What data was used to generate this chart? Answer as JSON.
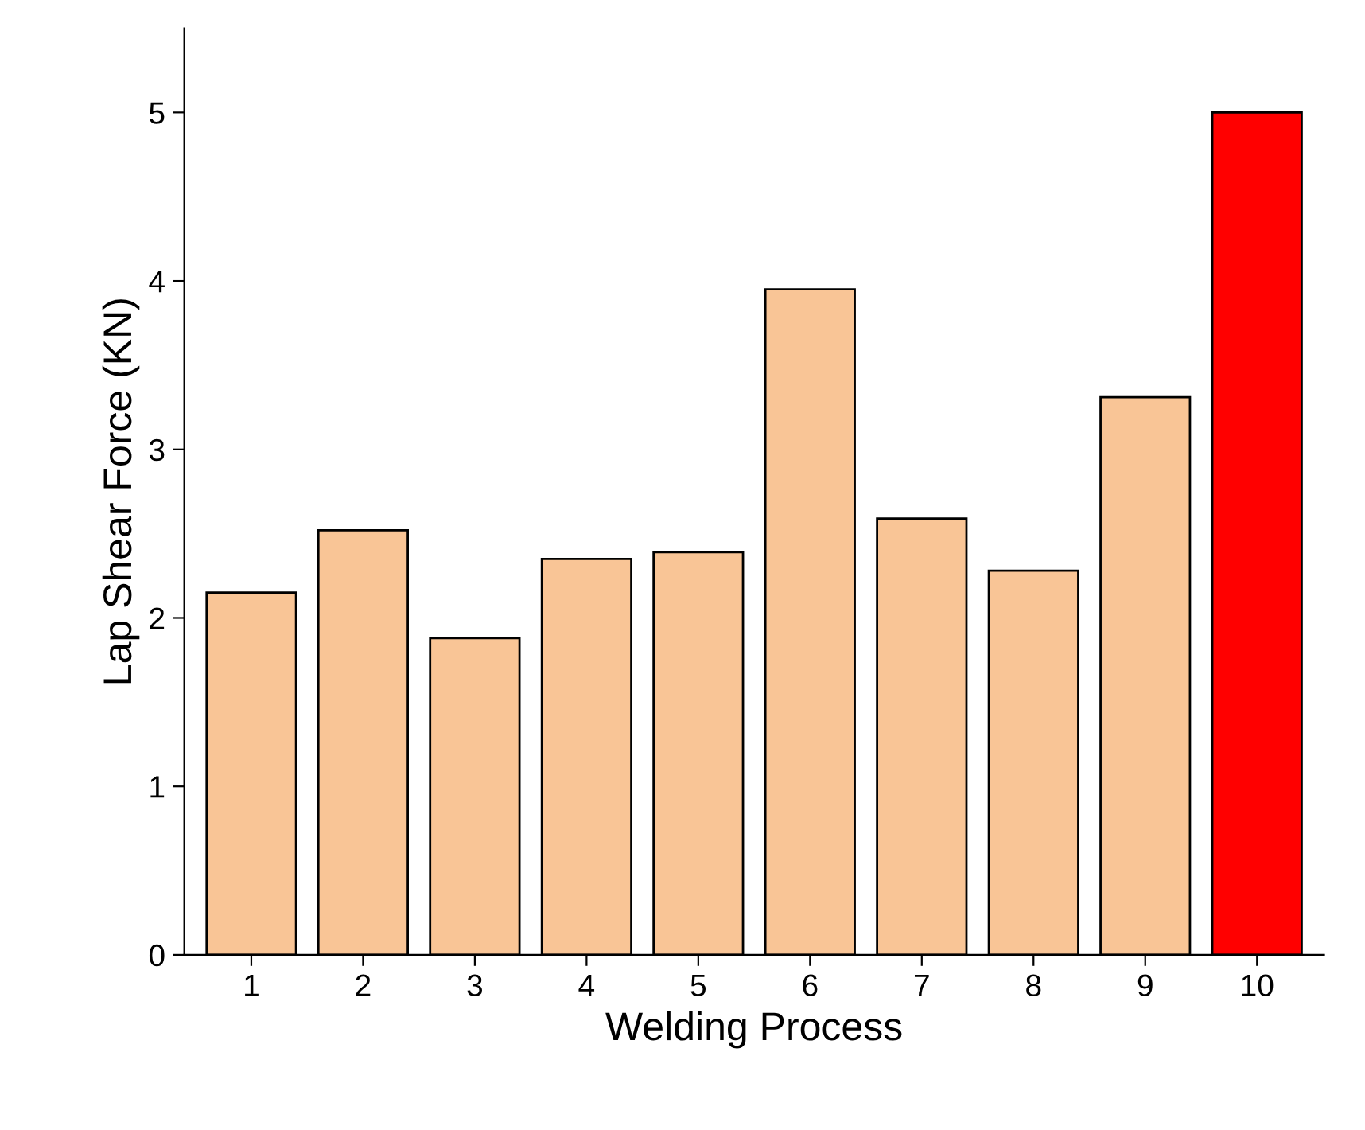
{
  "chart_data": {
    "type": "bar",
    "xlabel": "Welding Process",
    "ylabel": "Lap Shear Force (KN)",
    "categories": [
      "1",
      "2",
      "3",
      "4",
      "5",
      "6",
      "7",
      "8",
      "9",
      "10"
    ],
    "values": [
      2.15,
      2.52,
      1.88,
      2.35,
      2.39,
      3.95,
      2.59,
      2.28,
      3.31,
      5.0
    ],
    "colors": [
      "#f9c596",
      "#f9c596",
      "#f9c596",
      "#f9c596",
      "#f9c596",
      "#f9c596",
      "#f9c596",
      "#f9c596",
      "#f9c596",
      "#ff0000"
    ],
    "ylim": [
      0,
      5.5
    ],
    "yticks": [
      0,
      1,
      2,
      3,
      4,
      5
    ],
    "grid": false,
    "legend": false
  }
}
